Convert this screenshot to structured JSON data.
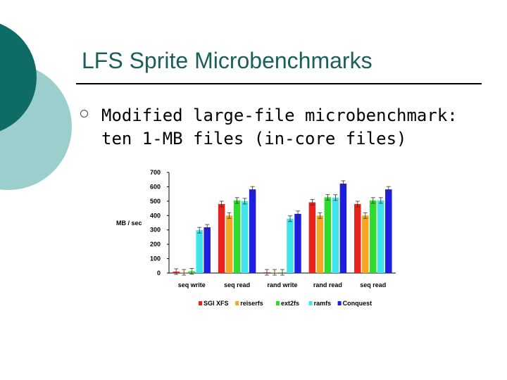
{
  "slide": {
    "title": "LFS Sprite Microbenchmarks",
    "bullet": {
      "line1": "Modified large-file microbenchmark:",
      "line2": "ten 1-MB files (in-core files)"
    }
  },
  "colors": {
    "title": "#1a5f5b",
    "deco_dark": "#0f6b66",
    "deco_light": "#9bcfcd"
  },
  "chart_data": {
    "type": "bar",
    "title": "",
    "xlabel": "",
    "ylabel": "MB / sec",
    "ylim": [
      0,
      700
    ],
    "yticks": [
      0,
      100,
      200,
      300,
      400,
      500,
      600,
      700
    ],
    "grid": false,
    "legend_position": "bottom",
    "categories": [
      "seq write",
      "seq read",
      "rand write",
      "rand read",
      "seq read"
    ],
    "series": [
      {
        "name": "SGI XFS",
        "color": "#e8231e",
        "values": [
          10,
          480,
          2,
          492,
          480
        ]
      },
      {
        "name": "reiserfs",
        "color": "#f5a623",
        "values": [
          5,
          400,
          2,
          400,
          400
        ]
      },
      {
        "name": "ext2fs",
        "color": "#2edc2e",
        "values": [
          12,
          505,
          2,
          527,
          505
        ]
      },
      {
        "name": "ramfs",
        "color": "#3ee6ec",
        "values": [
          298,
          500,
          378,
          525,
          505
        ]
      },
      {
        "name": "Conquest",
        "color": "#1e1ee0",
        "values": [
          318,
          582,
          412,
          622,
          582
        ]
      }
    ]
  }
}
